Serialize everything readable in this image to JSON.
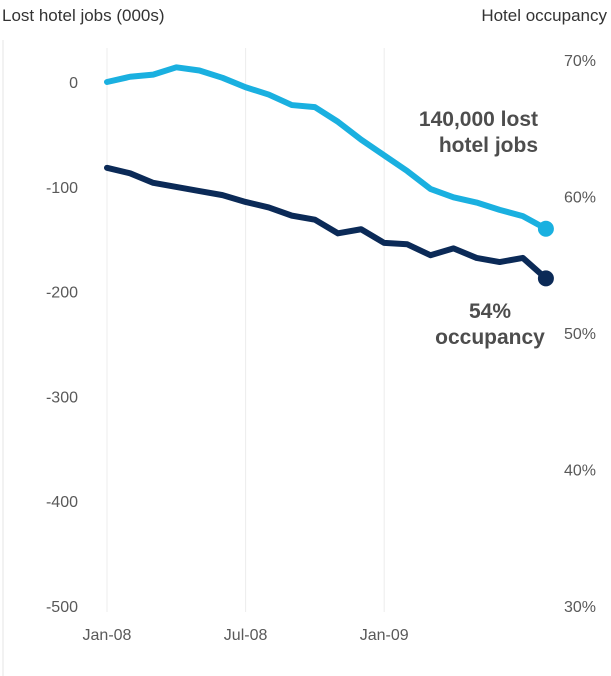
{
  "chart_data": {
    "type": "line",
    "ylabel_left": "Lost hotel jobs (000s)",
    "ylabel_right": "Hotel occupancy",
    "y_left": {
      "ticks": [
        "0",
        "-100",
        "-200",
        "-300",
        "-400",
        "-500"
      ],
      "range": [
        -500,
        0
      ]
    },
    "y_right": {
      "ticks": [
        "70%",
        "60%",
        "50%",
        "40%",
        "30%"
      ],
      "range": [
        30,
        70
      ]
    },
    "x_ticks": [
      "Jan-08",
      "Jul-08",
      "Jan-09"
    ],
    "series": [
      {
        "key": "lost_jobs",
        "axis": "left",
        "color": "#1ab0e0",
        "x": [
          "2008-01",
          "2008-02",
          "2008-03",
          "2008-04",
          "2008-05",
          "2008-06",
          "2008-07",
          "2008-08",
          "2008-09",
          "2008-10",
          "2008-11",
          "2008-12",
          "2009-01",
          "2009-02",
          "2009-03",
          "2009-04",
          "2009-05",
          "2009-06",
          "2009-07",
          "2009-08"
        ],
        "values": [
          0,
          5,
          7,
          14,
          11,
          4,
          -5,
          -12,
          -22,
          -24,
          -38,
          -55,
          -70,
          -85,
          -102,
          -110,
          -115,
          -122,
          -128,
          -140
        ]
      },
      {
        "key": "occupancy",
        "axis": "right",
        "color": "#0b2a57",
        "x": [
          "2008-01",
          "2008-02",
          "2008-03",
          "2008-04",
          "2008-05",
          "2008-06",
          "2008-07",
          "2008-08",
          "2008-09",
          "2008-10",
          "2008-11",
          "2008-12",
          "2009-01",
          "2009-02",
          "2009-03",
          "2009-04",
          "2009-05",
          "2009-06",
          "2009-07",
          "2009-08"
        ],
        "values": [
          62.1,
          61.7,
          61.0,
          60.7,
          60.4,
          60.1,
          59.6,
          59.2,
          58.6,
          58.3,
          57.3,
          57.6,
          56.6,
          56.5,
          55.7,
          56.2,
          55.5,
          55.2,
          55.5,
          54.0
        ]
      }
    ],
    "annotations": [
      {
        "key": "jobs_note",
        "lines": [
          "140,000 lost",
          "hotel jobs"
        ]
      },
      {
        "key": "occ_note",
        "lines": [
          "54%",
          "occupancy"
        ]
      }
    ]
  }
}
